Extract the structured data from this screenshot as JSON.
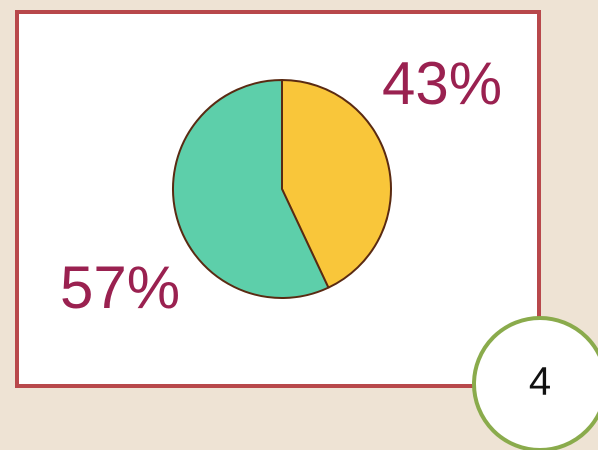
{
  "chart_data": {
    "type": "pie",
    "values": [
      43,
      57
    ],
    "value_labels": [
      "43%",
      "57%"
    ],
    "colors": [
      "#f9c63a",
      "#5dcfaa"
    ]
  },
  "badge": "4"
}
